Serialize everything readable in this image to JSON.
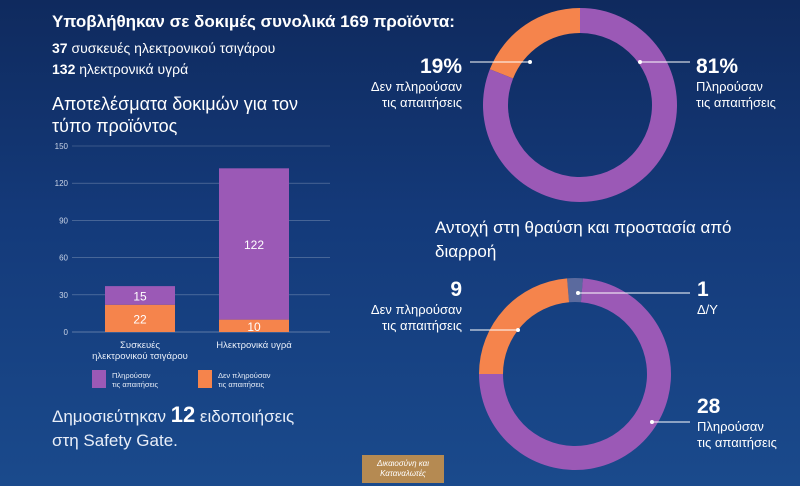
{
  "headline": "Υποβλήθηκαν σε δοκιμές συνολικά 169 προϊόντα:",
  "sub1": {
    "num": "37",
    "text": " συσκευές ηλεκτρονικού τσιγάρου"
  },
  "sub2": {
    "num": "132",
    "text": " ηλεκτρονικά υγρά"
  },
  "bar_title": "Αποτελέσματα δοκιμών για τον τύπο προϊόντος",
  "summary": {
    "pre": "Δημοσιεύτηκαν ",
    "num": "12",
    "post": " ειδοποιήσεις",
    "line2": "στη Safety Gate."
  },
  "badge": "Δικαιοσύνη και Καταναλωτές",
  "donut1": {
    "left_pct": "19%",
    "left_l1": "Δεν πληρούσαν",
    "left_l2": "τις απαιτήσεις",
    "right_pct": "81%",
    "right_l1": "Πληρούσαν",
    "right_l2": "τις απαιτήσεις"
  },
  "donut2": {
    "title": "Αντοχή στη θραύση και προστασία από διαρροή",
    "left_num": "9",
    "left_l1": "Δεν πληρούσαν",
    "left_l2": "τις απαιτήσεις",
    "na_num": "1",
    "na_label": "Δ/Υ",
    "right_num": "28",
    "right_l1": "Πληρούσαν",
    "right_l2": "τις απαιτήσεις"
  },
  "colors": {
    "pass": "#9b59b6",
    "fail": "#f5844c",
    "na": "#5b6a9e",
    "axis": "#c9d3e6"
  },
  "chart_data": [
    {
      "type": "bar",
      "title": "Αποτελέσματα δοκιμών για τον τύπο προϊόντος",
      "categories": [
        [
          "Συσκευές",
          "ηλεκτρονικού τσιγάρου"
        ],
        [
          "Ηλεκτρονικά υγρά"
        ]
      ],
      "series": [
        {
          "name": "Δεν πληρούσαν τις απαιτήσεις",
          "values": [
            22,
            10
          ]
        },
        {
          "name": "Πληρούσαν τις απαιτήσεις",
          "values": [
            15,
            122
          ]
        }
      ],
      "stacked": true,
      "ylim": [
        0,
        150
      ],
      "yticks": [
        0,
        30,
        60,
        90,
        120,
        150
      ],
      "legend": [
        {
          "l1": "Πληρούσαν",
          "l2": "τις απαιτήσεις"
        },
        {
          "l1": "Δεν πληρούσαν",
          "l2": "τις απαιτήσεις"
        }
      ]
    },
    {
      "type": "pie",
      "labels": [
        "Δεν πληρούσαν τις απαιτήσεις",
        "Πληρούσαν τις απαιτήσεις"
      ],
      "values": [
        19,
        81
      ]
    },
    {
      "type": "pie",
      "title": "Αντοχή στη θραύση και προστασία από διαρροή",
      "labels": [
        "Δ/Υ",
        "Πληρούσαν τις απαιτήσεις",
        "Δεν πληρούσαν τις απαιτήσεις"
      ],
      "values": [
        1,
        28,
        9
      ]
    }
  ]
}
